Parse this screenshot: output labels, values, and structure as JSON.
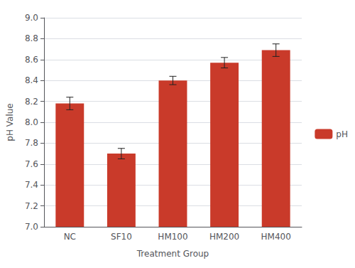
{
  "chart_data": {
    "type": "bar",
    "categories": [
      "NC",
      "SF10",
      "HM100",
      "HM200",
      "HM400"
    ],
    "values": [
      8.18,
      7.7,
      8.4,
      8.57,
      8.69
    ],
    "errors": [
      0.06,
      0.05,
      0.04,
      0.05,
      0.06
    ],
    "color": "#C93A2A",
    "xlabel": "Treatment Group",
    "ylabel": "pH Value",
    "ylim": [
      7.0,
      9.0
    ],
    "yticks": [
      {
        "value": 7,
        "label": "7.0"
      },
      7.2,
      7.4,
      7.6,
      7.8,
      {
        "value": 8,
        "label": "8.0"
      },
      8.2,
      8.4,
      8.6,
      8.8,
      {
        "value": 9,
        "label": "9.0"
      }
    ],
    "legend_label": "pH",
    "legend": "right",
    "grid": true
  }
}
